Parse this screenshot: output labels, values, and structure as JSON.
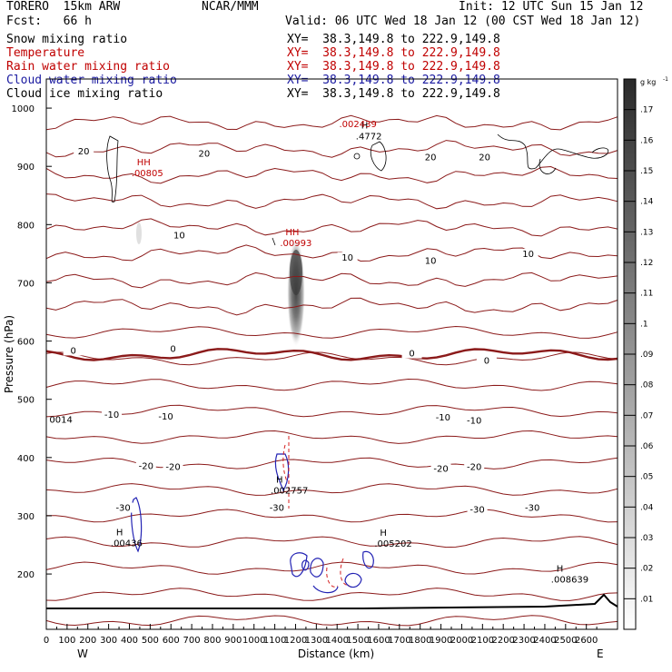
{
  "header": {
    "model": "TORERO  15km ARW",
    "center": "NCAR/MMM",
    "init": "Init: 12 UTC Sun 15 Jan 12",
    "fcst": "Fcst:   66 h",
    "valid": "Valid: 06 UTC Wed 18 Jan 12 (00 CST Wed 18 Jan 12)"
  },
  "fields": [
    {
      "name": "Snow mixing ratio",
      "xy": "XY=  38.3,149.8 to 222.9,149.8",
      "color": "#000000"
    },
    {
      "name": "Temperature",
      "xy": "XY=  38.3,149.8 to 222.9,149.8",
      "color": "#c00000"
    },
    {
      "name": "Rain water mixing ratio",
      "xy": "XY=  38.3,149.8 to 222.9,149.8",
      "color": "#c00000"
    },
    {
      "name": "Cloud water mixing ratio",
      "xy": "XY=  38.3,149.8 to 222.9,149.8",
      "color": "#1a1aa0"
    },
    {
      "name": "Cloud ice mixing ratio",
      "xy": "XY=  38.3,149.8 to 222.9,149.8",
      "color": "#000000"
    }
  ],
  "chart_data": {
    "type": "cross-section",
    "xlabel": "Distance (km)",
    "ylabel": "Pressure (hPa)",
    "xlim": [
      0,
      2750
    ],
    "ylim": [
      1050,
      105
    ],
    "x_ticks": [
      "0",
      "100",
      "200",
      "300",
      "400",
      "500",
      "600",
      "700",
      "800",
      "900",
      "1000",
      "1100",
      "1200",
      "1300",
      "1400",
      "1500",
      "1600",
      "1700",
      "1800",
      "1900",
      "2000",
      "2100",
      "2200",
      "2300",
      "2400",
      "2500",
      "2600"
    ],
    "y_ticks": [
      "200",
      "300",
      "400",
      "500",
      "600",
      "700",
      "800",
      "900",
      "1000"
    ],
    "x_end_labels": {
      "left": "W",
      "right": "E"
    },
    "colorbar": {
      "unit": "g kg",
      "ticks": [
        ".01",
        ".02",
        ".03",
        ".04",
        ".05",
        ".06",
        ".07",
        ".08",
        ".09",
        ".1",
        ".11",
        ".12",
        ".13",
        ".14",
        ".15",
        ".16",
        ".17"
      ]
    },
    "isotherm_labels": [
      {
        "text": "-30",
        "x": 370,
        "p": 310
      },
      {
        "text": "-30",
        "x": 1110,
        "p": 310
      },
      {
        "text": "-30",
        "x": 2075,
        "p": 307
      },
      {
        "text": "-30",
        "x": 2340,
        "p": 310
      },
      {
        "text": "-20",
        "x": 480,
        "p": 382
      },
      {
        "text": "-20",
        "x": 610,
        "p": 380
      },
      {
        "text": "-20",
        "x": 1900,
        "p": 377
      },
      {
        "text": "-20",
        "x": 2060,
        "p": 380
      },
      {
        "text": "-10",
        "x": 315,
        "p": 470
      },
      {
        "text": "-10",
        "x": 575,
        "p": 467
      },
      {
        "text": "-10",
        "x": 1910,
        "p": 465
      },
      {
        "text": "-10",
        "x": 2060,
        "p": 460
      },
      {
        "text": "0",
        "x": 130,
        "p": 580
      },
      {
        "text": "0",
        "x": 610,
        "p": 583
      },
      {
        "text": "0",
        "x": 1760,
        "p": 575
      },
      {
        "text": "0",
        "x": 2120,
        "p": 563
      },
      {
        "text": "10",
        "x": 1450,
        "p": 740
      },
      {
        "text": "10",
        "x": 1850,
        "p": 734
      },
      {
        "text": "10",
        "x": 2320,
        "p": 746
      },
      {
        "text": "10",
        "x": 640,
        "p": 778
      },
      {
        "text": "20",
        "x": 180,
        "p": 922
      },
      {
        "text": "20",
        "x": 760,
        "p": 918
      },
      {
        "text": "20",
        "x": 1850,
        "p": 912
      },
      {
        "text": "20",
        "x": 2110,
        "p": 912
      }
    ],
    "extrema": [
      {
        "label": "H",
        "value": ".00436",
        "x": 310,
        "p": 248,
        "color": "#000000"
      },
      {
        "label": "H",
        "value": ".005202",
        "x": 1580,
        "p": 247,
        "color": "#000000"
      },
      {
        "label": "H",
        "value": ".008639",
        "x": 2430,
        "p": 185,
        "color": "#000000"
      },
      {
        "label": "H",
        "value": ".002757",
        "x": 1080,
        "p": 338,
        "color": "#000000"
      },
      {
        "label": "",
        "value": "0014",
        "x": 15,
        "p": 460,
        "color": "#000000"
      },
      {
        "label": "HH",
        "value": ".00805",
        "x": 410,
        "p": 883,
        "color": "#c00000"
      },
      {
        "label": "HH",
        "value": ".00993",
        "x": 1125,
        "p": 763,
        "color": "#c00000"
      },
      {
        "label": "H",
        "value": ".4772",
        "x": 1490,
        "p": 946,
        "color": "#000000"
      },
      {
        "label": "",
        "value": ".002439",
        "x": 1410,
        "p": 967,
        "color": "#c00000"
      }
    ]
  }
}
